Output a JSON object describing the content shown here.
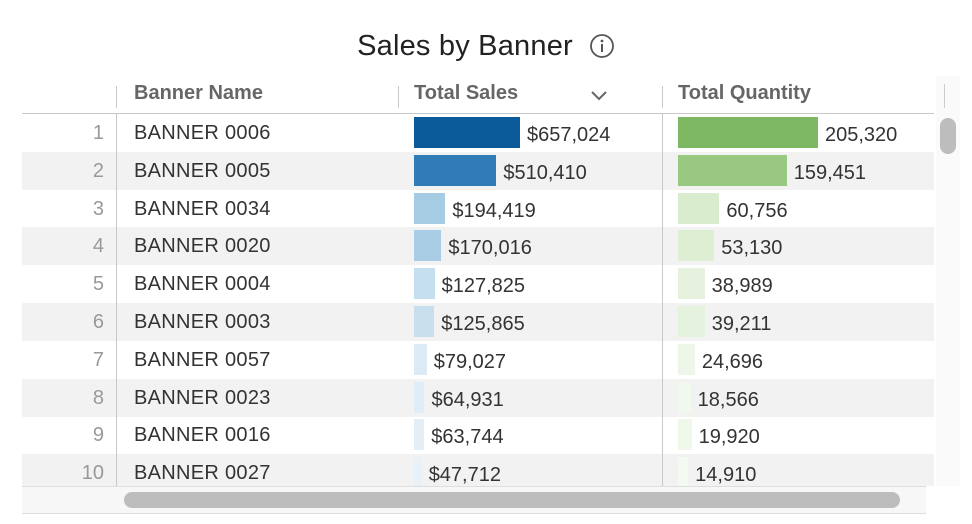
{
  "title": "Sales by Banner",
  "headers": {
    "banner_name": "Banner Name",
    "total_sales": "Total Sales",
    "total_quantity": "Total Quantity"
  },
  "icons": {
    "info": "info-icon",
    "sort": "chevron-down-icon"
  },
  "colors": {
    "sales_bars": [
      "#0b5a9a",
      "#2f7cb6",
      "#a6cce3",
      "#a9cde4",
      "#c6dfee",
      "#c8e0ee",
      "#dbeaf4",
      "#e1edf6",
      "#e3eef7",
      "#e8f1f8"
    ],
    "quantity_bars": [
      "#7eb863",
      "#99c981",
      "#d9eccd",
      "#deeed3",
      "#e6f2de",
      "#e5f2dd",
      "#eef6e9",
      "#f1f8ed",
      "#f0f7eb",
      "#f4faf1"
    ]
  },
  "max_sales": 657024,
  "max_quantity": 205320,
  "rows": [
    {
      "index": "1",
      "banner": "BANNER 0006",
      "sales": 657024,
      "sales_label": "$657,024",
      "quantity": 205320,
      "quantity_label": "205,320"
    },
    {
      "index": "2",
      "banner": "BANNER 0005",
      "sales": 510410,
      "sales_label": "$510,410",
      "quantity": 159451,
      "quantity_label": "159,451"
    },
    {
      "index": "3",
      "banner": "BANNER 0034",
      "sales": 194419,
      "sales_label": "$194,419",
      "quantity": 60756,
      "quantity_label": "60,756"
    },
    {
      "index": "4",
      "banner": "BANNER 0020",
      "sales": 170016,
      "sales_label": "$170,016",
      "quantity": 53130,
      "quantity_label": "53,130"
    },
    {
      "index": "5",
      "banner": "BANNER 0004",
      "sales": 127825,
      "sales_label": "$127,825",
      "quantity": 38989,
      "quantity_label": "38,989"
    },
    {
      "index": "6",
      "banner": "BANNER 0003",
      "sales": 125865,
      "sales_label": "$125,865",
      "quantity": 39211,
      "quantity_label": "39,211"
    },
    {
      "index": "7",
      "banner": "BANNER 0057",
      "sales": 79027,
      "sales_label": "$79,027",
      "quantity": 24696,
      "quantity_label": "24,696"
    },
    {
      "index": "8",
      "banner": "BANNER 0023",
      "sales": 64931,
      "sales_label": "$64,931",
      "quantity": 18566,
      "quantity_label": "18,566"
    },
    {
      "index": "9",
      "banner": "BANNER 0016",
      "sales": 63744,
      "sales_label": "$63,744",
      "quantity": 19920,
      "quantity_label": "19,920"
    },
    {
      "index": "10",
      "banner": "BANNER 0027",
      "sales": 47712,
      "sales_label": "$47,712",
      "quantity": 14910,
      "quantity_label": "14,910"
    }
  ]
}
